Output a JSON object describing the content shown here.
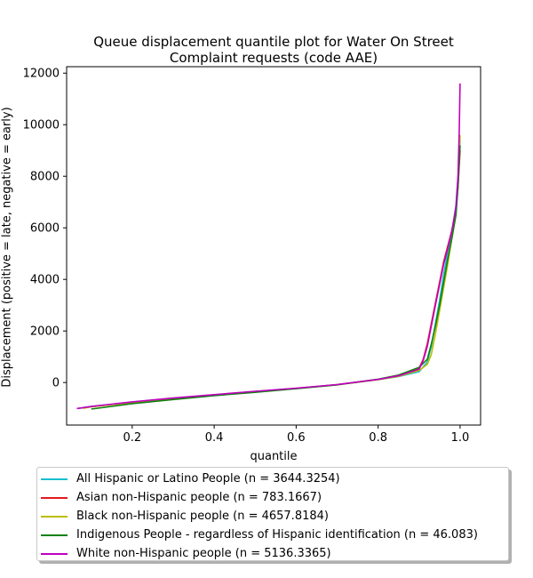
{
  "chart_data": {
    "type": "line",
    "title_line1": "Queue displacement quantile plot for Water On Street",
    "title_line2": "Complaint  requests (code AAE)",
    "xlabel": "quantile",
    "ylabel": "Displacement (positive = late, negative = early)",
    "xlim": [
      0.04,
      1.05
    ],
    "ylim": [
      -1650,
      12250
    ],
    "xticks": [
      0.2,
      0.4,
      0.6,
      0.8,
      1.0
    ],
    "xtick_labels": [
      "0.2",
      "0.4",
      "0.6",
      "0.8",
      "1.0"
    ],
    "yticks": [
      0,
      2000,
      4000,
      6000,
      8000,
      10000,
      12000
    ],
    "ytick_labels": [
      "0",
      "2000",
      "4000",
      "6000",
      "8000",
      "10000",
      "12000"
    ],
    "grid": false,
    "legend_position": "below",
    "series": [
      {
        "name": "All Hispanic or Latino People (n = 3644.3254)",
        "color": "#17becf",
        "x": [
          0.07,
          0.1,
          0.2,
          0.3,
          0.4,
          0.5,
          0.6,
          0.7,
          0.8,
          0.85,
          0.9,
          0.92,
          0.93,
          0.94,
          0.95,
          0.96,
          0.97,
          0.98,
          0.99,
          0.995,
          1.0
        ],
        "y": [
          -1000,
          -930,
          -760,
          -610,
          -480,
          -350,
          -230,
          -80,
          110,
          230,
          420,
          800,
          1400,
          2300,
          3200,
          4200,
          5100,
          5800,
          6900,
          8000,
          9400
        ]
      },
      {
        "name": "Asian non-Hispanic people (n = 783.1667)",
        "color": "#e41a1c",
        "x": [
          0.08,
          0.1,
          0.2,
          0.3,
          0.4,
          0.5,
          0.6,
          0.7,
          0.8,
          0.85,
          0.9,
          0.91,
          0.92,
          0.93,
          0.94,
          0.95,
          0.96,
          0.97,
          0.98,
          0.99,
          0.995,
          1.0
        ],
        "y": [
          -990,
          -940,
          -770,
          -620,
          -480,
          -350,
          -230,
          -80,
          120,
          260,
          560,
          900,
          1500,
          2300,
          3100,
          3900,
          4700,
          5300,
          5900,
          6700,
          7600,
          9000
        ]
      },
      {
        "name": "Black non-Hispanic people (n = 4657.8184)",
        "color": "#bcbd00",
        "x": [
          0.08,
          0.1,
          0.2,
          0.3,
          0.4,
          0.5,
          0.6,
          0.7,
          0.8,
          0.85,
          0.9,
          0.92,
          0.93,
          0.94,
          0.95,
          0.96,
          0.97,
          0.98,
          0.99,
          0.995,
          1.0
        ],
        "y": [
          -1000,
          -940,
          -770,
          -620,
          -490,
          -360,
          -230,
          -90,
          110,
          240,
          470,
          700,
          1100,
          1900,
          2800,
          3700,
          4600,
          5600,
          6600,
          7800,
          9600
        ]
      },
      {
        "name": "Indigenous People - regardless of Hispanic identification (n = 46.083)",
        "color": "#108010",
        "x": [
          0.1,
          0.2,
          0.3,
          0.4,
          0.5,
          0.6,
          0.7,
          0.8,
          0.85,
          0.9,
          0.92,
          0.93,
          0.94,
          0.95,
          0.96,
          0.97,
          0.98,
          0.99,
          0.995,
          1.0
        ],
        "y": [
          -1030,
          -820,
          -660,
          -510,
          -380,
          -240,
          -90,
          130,
          290,
          590,
          900,
          1500,
          2200,
          3000,
          3900,
          4800,
          5600,
          6500,
          7600,
          9200
        ]
      },
      {
        "name": "White non-Hispanic people (n = 5136.3365)",
        "color": "#c000c0",
        "x": [
          0.065,
          0.1,
          0.2,
          0.3,
          0.4,
          0.5,
          0.6,
          0.7,
          0.8,
          0.85,
          0.9,
          0.91,
          0.92,
          0.93,
          0.94,
          0.95,
          0.96,
          0.97,
          0.98,
          0.99,
          0.995,
          0.998,
          1.0
        ],
        "y": [
          -1010,
          -930,
          -750,
          -600,
          -470,
          -340,
          -220,
          -80,
          120,
          260,
          520,
          850,
          1400,
          2200,
          3000,
          3800,
          4600,
          5200,
          5900,
          6800,
          8000,
          9800,
          11600
        ]
      }
    ]
  }
}
